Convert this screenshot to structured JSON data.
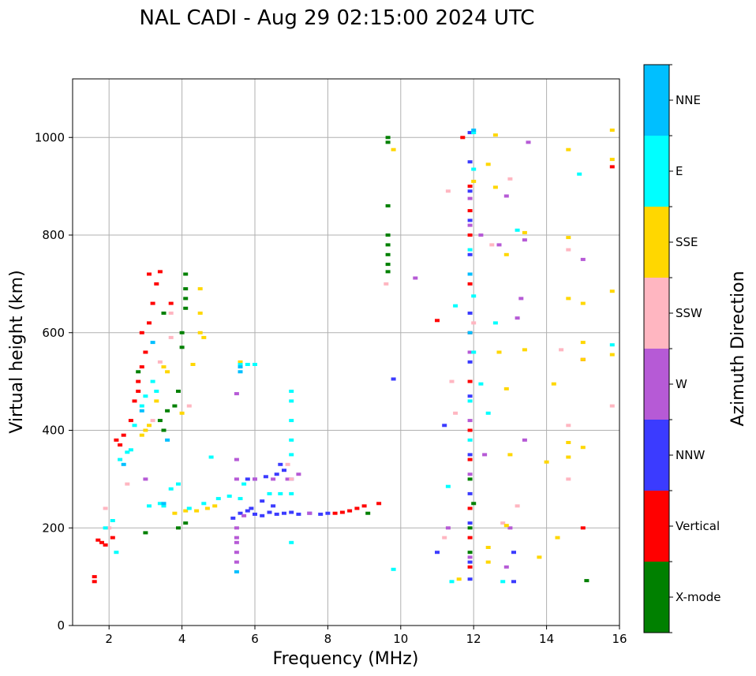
{
  "chart_data": {
    "type": "scatter",
    "title": "NAL CADI - Aug 29 02:15:00 2024 UTC",
    "xlabel": "Frequency (MHz)",
    "ylabel": "Virtual height (km)",
    "xlim": [
      1,
      16
    ],
    "ylim": [
      0,
      1120
    ],
    "xticks": [
      2,
      4,
      6,
      8,
      10,
      12,
      14,
      16
    ],
    "yticks": [
      0,
      200,
      400,
      600,
      800,
      1000
    ],
    "grid": true,
    "colorbar": {
      "label": "Azimuth Direction",
      "categories": [
        {
          "name": "X-mode",
          "color": "#008000"
        },
        {
          "name": "Vertical",
          "color": "#ff0000"
        },
        {
          "name": "NNW",
          "color": "#3b3bff"
        },
        {
          "name": "W",
          "color": "#b65ad6"
        },
        {
          "name": "SSW",
          "color": "#ffb6c1"
        },
        {
          "name": "SSE",
          "color": "#ffd700"
        },
        {
          "name": "E",
          "color": "#00ffff"
        },
        {
          "name": "NNE",
          "color": "#00bfff"
        }
      ]
    },
    "series": [
      {
        "name": "X-mode",
        "points": [
          [
            9.65,
            1000
          ],
          [
            9.65,
            990
          ],
          [
            9.65,
            860
          ],
          [
            9.65,
            800
          ],
          [
            9.65,
            780
          ],
          [
            9.65,
            760
          ],
          [
            9.65,
            740
          ],
          [
            9.65,
            725
          ],
          [
            4.1,
            720
          ],
          [
            4.1,
            690
          ],
          [
            4.1,
            670
          ],
          [
            4.1,
            650
          ],
          [
            4.0,
            600
          ],
          [
            4.0,
            570
          ],
          [
            3.9,
            480
          ],
          [
            3.8,
            450
          ],
          [
            3.6,
            440
          ],
          [
            3.5,
            400
          ],
          [
            3.9,
            200
          ],
          [
            4.1,
            210
          ],
          [
            9.1,
            230
          ],
          [
            11.9,
            300
          ],
          [
            12.0,
            250
          ],
          [
            11.9,
            200
          ],
          [
            11.9,
            150
          ],
          [
            15.1,
            92
          ],
          [
            3.0,
            190
          ],
          [
            2.8,
            520
          ],
          [
            3.4,
            420
          ],
          [
            3.5,
            640
          ]
        ]
      },
      {
        "name": "Vertical",
        "points": [
          [
            1.6,
            100
          ],
          [
            1.6,
            90
          ],
          [
            1.7,
            175
          ],
          [
            1.8,
            170
          ],
          [
            1.9,
            165
          ],
          [
            2.1,
            180
          ],
          [
            2.3,
            370
          ],
          [
            2.4,
            390
          ],
          [
            2.6,
            420
          ],
          [
            2.7,
            460
          ],
          [
            2.8,
            500
          ],
          [
            2.9,
            530
          ],
          [
            3.0,
            560
          ],
          [
            3.1,
            620
          ],
          [
            3.2,
            660
          ],
          [
            3.3,
            700
          ],
          [
            3.4,
            725
          ],
          [
            3.1,
            720
          ],
          [
            8.2,
            230
          ],
          [
            8.4,
            232
          ],
          [
            8.6,
            235
          ],
          [
            8.8,
            240
          ],
          [
            9.0,
            245
          ],
          [
            9.4,
            250
          ],
          [
            11.9,
            900
          ],
          [
            11.9,
            850
          ],
          [
            11.9,
            800
          ],
          [
            11.9,
            700
          ],
          [
            11.9,
            600
          ],
          [
            11.9,
            500
          ],
          [
            11.9,
            400
          ],
          [
            11.9,
            340
          ],
          [
            11.9,
            240
          ],
          [
            11.9,
            180
          ],
          [
            11.9,
            120
          ],
          [
            11.7,
            1000
          ],
          [
            11.0,
            625
          ],
          [
            15.0,
            200
          ],
          [
            15.0,
            545
          ],
          [
            15.8,
            940
          ],
          [
            3.7,
            660
          ],
          [
            2.2,
            380
          ],
          [
            2.9,
            600
          ],
          [
            2.8,
            480
          ]
        ]
      },
      {
        "name": "NNW",
        "points": [
          [
            5.4,
            220
          ],
          [
            5.6,
            230
          ],
          [
            5.8,
            235
          ],
          [
            6.0,
            228
          ],
          [
            6.2,
            225
          ],
          [
            6.4,
            232
          ],
          [
            6.6,
            228
          ],
          [
            6.8,
            230
          ],
          [
            7.0,
            232
          ],
          [
            7.2,
            228
          ],
          [
            7.5,
            230
          ],
          [
            7.8,
            228
          ],
          [
            8.0,
            230
          ],
          [
            6.0,
            300
          ],
          [
            6.3,
            305
          ],
          [
            6.6,
            310
          ],
          [
            6.8,
            318
          ],
          [
            6.7,
            330
          ],
          [
            5.8,
            300
          ],
          [
            7.0,
            300
          ],
          [
            6.2,
            255
          ],
          [
            6.5,
            245
          ],
          [
            5.9,
            240
          ],
          [
            11.9,
            1010
          ],
          [
            11.9,
            950
          ],
          [
            11.9,
            890
          ],
          [
            11.9,
            830
          ],
          [
            11.9,
            760
          ],
          [
            11.9,
            640
          ],
          [
            11.9,
            540
          ],
          [
            11.9,
            470
          ],
          [
            11.9,
            350
          ],
          [
            11.9,
            270
          ],
          [
            11.9,
            210
          ],
          [
            11.9,
            130
          ],
          [
            11.9,
            95
          ],
          [
            11.2,
            410
          ],
          [
            11.0,
            150
          ],
          [
            13.1,
            90
          ],
          [
            13.1,
            150
          ],
          [
            9.8,
            505
          ]
        ]
      },
      {
        "name": "W",
        "points": [
          [
            5.5,
            200
          ],
          [
            5.5,
            170
          ],
          [
            5.5,
            150
          ],
          [
            5.5,
            130
          ],
          [
            5.5,
            180
          ],
          [
            5.5,
            300
          ],
          [
            5.5,
            340
          ],
          [
            5.5,
            475
          ],
          [
            6.0,
            300
          ],
          [
            6.5,
            300
          ],
          [
            6.9,
            300
          ],
          [
            7.2,
            310
          ],
          [
            5.7,
            225
          ],
          [
            7.5,
            230
          ],
          [
            10.4,
            712
          ],
          [
            11.9,
            875
          ],
          [
            11.9,
            820
          ],
          [
            11.9,
            560
          ],
          [
            11.9,
            420
          ],
          [
            11.9,
            310
          ],
          [
            11.9,
            140
          ],
          [
            12.2,
            800
          ],
          [
            12.7,
            780
          ],
          [
            12.9,
            880
          ],
          [
            13.2,
            630
          ],
          [
            13.3,
            670
          ],
          [
            13.4,
            790
          ],
          [
            13.4,
            380
          ],
          [
            13.5,
            990
          ],
          [
            15.0,
            750
          ],
          [
            11.3,
            200
          ],
          [
            12.3,
            350
          ],
          [
            13.0,
            200
          ],
          [
            12.9,
            120
          ],
          [
            3.0,
            300
          ]
        ]
      },
      {
        "name": "SSW",
        "points": [
          [
            2.5,
            290
          ],
          [
            3.2,
            420
          ],
          [
            3.4,
            540
          ],
          [
            3.7,
            590
          ],
          [
            3.7,
            640
          ],
          [
            4.2,
            450
          ],
          [
            6.9,
            330
          ],
          [
            7.0,
            300
          ],
          [
            9.6,
            700
          ],
          [
            11.3,
            890
          ],
          [
            11.4,
            500
          ],
          [
            11.5,
            435
          ],
          [
            12.5,
            780
          ],
          [
            13.0,
            915
          ],
          [
            13.2,
            245
          ],
          [
            14.4,
            565
          ],
          [
            14.6,
            770
          ],
          [
            14.6,
            410
          ],
          [
            14.6,
            300
          ],
          [
            15.8,
            450
          ],
          [
            11.2,
            180
          ],
          [
            12.8,
            210
          ],
          [
            12.0,
            620
          ],
          [
            1.9,
            240
          ],
          [
            2.0,
            200
          ]
        ]
      },
      {
        "name": "SSE",
        "points": [
          [
            2.9,
            390
          ],
          [
            3.0,
            400
          ],
          [
            3.1,
            410
          ],
          [
            3.3,
            460
          ],
          [
            3.5,
            530
          ],
          [
            3.6,
            520
          ],
          [
            4.5,
            690
          ],
          [
            4.5,
            640
          ],
          [
            4.5,
            600
          ],
          [
            4.6,
            590
          ],
          [
            4.3,
            535
          ],
          [
            4.0,
            435
          ],
          [
            3.8,
            230
          ],
          [
            4.1,
            235
          ],
          [
            4.4,
            235
          ],
          [
            4.7,
            240
          ],
          [
            4.9,
            245
          ],
          [
            5.6,
            540
          ],
          [
            9.8,
            975
          ],
          [
            12.4,
            945
          ],
          [
            12.6,
            1005
          ],
          [
            12.6,
            898
          ],
          [
            12.7,
            560
          ],
          [
            12.9,
            760
          ],
          [
            12.9,
            485
          ],
          [
            13.0,
            350
          ],
          [
            13.4,
            565
          ],
          [
            13.4,
            805
          ],
          [
            13.8,
            140
          ],
          [
            14.0,
            335
          ],
          [
            14.2,
            495
          ],
          [
            14.3,
            180
          ],
          [
            14.6,
            670
          ],
          [
            14.6,
            795
          ],
          [
            14.6,
            975
          ],
          [
            14.6,
            375
          ],
          [
            14.6,
            345
          ],
          [
            15.0,
            660
          ],
          [
            15.0,
            580
          ],
          [
            15.0,
            545
          ],
          [
            15.0,
            365
          ],
          [
            15.8,
            1015
          ],
          [
            15.8,
            955
          ],
          [
            15.8,
            685
          ],
          [
            15.8,
            555
          ],
          [
            12.4,
            160
          ],
          [
            12.4,
            130
          ],
          [
            11.6,
            95
          ],
          [
            12.9,
            205
          ],
          [
            12.0,
            910
          ]
        ]
      },
      {
        "name": "E",
        "points": [
          [
            1.9,
            200
          ],
          [
            2.1,
            215
          ],
          [
            2.2,
            150
          ],
          [
            2.3,
            340
          ],
          [
            2.5,
            355
          ],
          [
            2.6,
            360
          ],
          [
            2.9,
            450
          ],
          [
            3.0,
            470
          ],
          [
            3.2,
            500
          ],
          [
            3.3,
            480
          ],
          [
            3.4,
            250
          ],
          [
            3.5,
            245
          ],
          [
            3.7,
            280
          ],
          [
            3.9,
            290
          ],
          [
            4.2,
            240
          ],
          [
            4.6,
            250
          ],
          [
            5.0,
            260
          ],
          [
            5.3,
            265
          ],
          [
            5.6,
            260
          ],
          [
            5.7,
            290
          ],
          [
            5.6,
            535
          ],
          [
            5.8,
            535
          ],
          [
            6.0,
            535
          ],
          [
            6.4,
            270
          ],
          [
            6.7,
            270
          ],
          [
            7.0,
            480
          ],
          [
            7.0,
            460
          ],
          [
            7.0,
            420
          ],
          [
            7.0,
            380
          ],
          [
            7.0,
            350
          ],
          [
            7.0,
            270
          ],
          [
            7.0,
            170
          ],
          [
            9.8,
            115
          ],
          [
            11.3,
            285
          ],
          [
            11.4,
            90
          ],
          [
            11.5,
            655
          ],
          [
            12.0,
            1010
          ],
          [
            12.0,
            935
          ],
          [
            12.0,
            675
          ],
          [
            12.0,
            560
          ],
          [
            12.2,
            495
          ],
          [
            12.4,
            435
          ],
          [
            12.6,
            620
          ],
          [
            12.8,
            90
          ],
          [
            13.2,
            810
          ],
          [
            14.9,
            925
          ],
          [
            15.8,
            575
          ],
          [
            11.9,
            770
          ],
          [
            11.9,
            460
          ],
          [
            11.9,
            380
          ],
          [
            4.8,
            345
          ],
          [
            3.1,
            245
          ],
          [
            2.7,
            410
          ]
        ]
      },
      {
        "name": "NNE",
        "points": [
          [
            5.5,
            110
          ],
          [
            5.6,
            530
          ],
          [
            5.6,
            520
          ],
          [
            3.6,
            380
          ],
          [
            2.9,
            440
          ],
          [
            3.2,
            580
          ],
          [
            12.0,
            1015
          ],
          [
            11.9,
            720
          ],
          [
            11.9,
            600
          ],
          [
            2.4,
            330
          ],
          [
            3.5,
            250
          ]
        ]
      }
    ]
  }
}
